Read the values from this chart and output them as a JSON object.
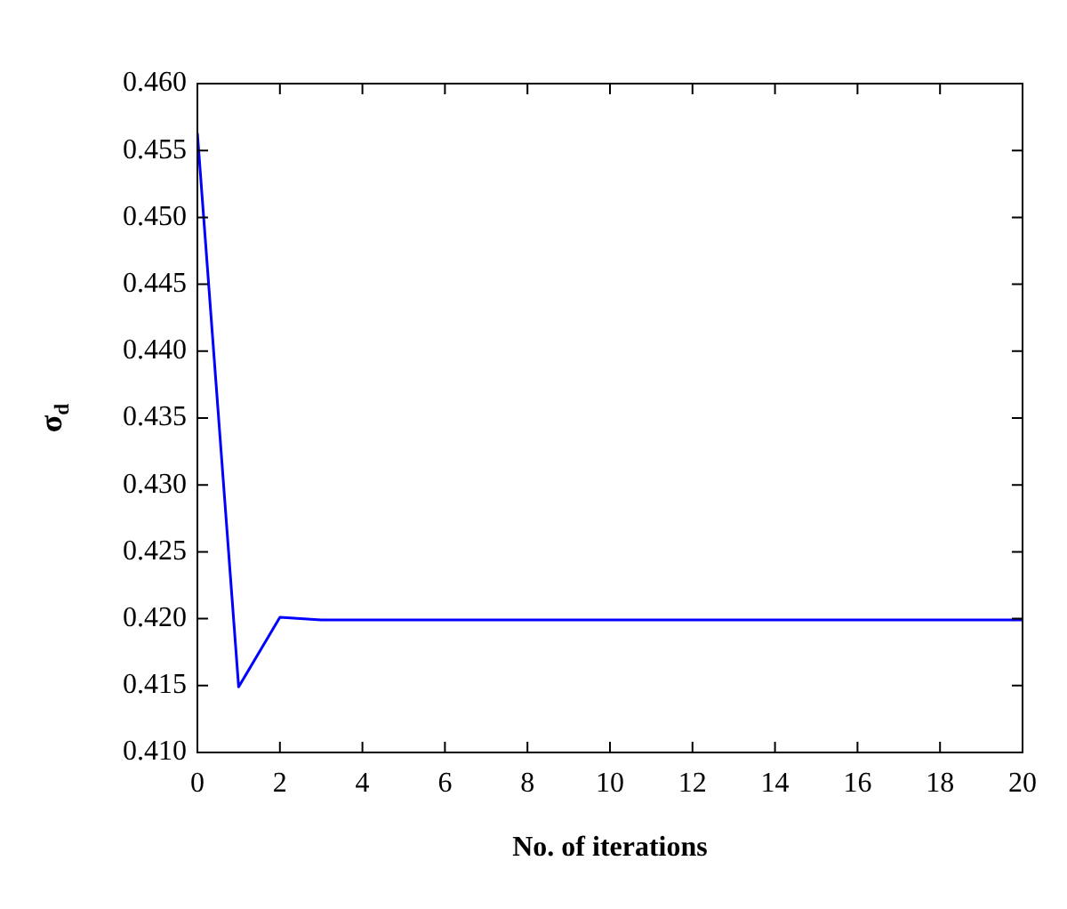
{
  "chart_data": {
    "type": "line",
    "xlabel": "No. of iterations",
    "ylabel": "σ$_{d}$",
    "x": [
      0,
      1,
      2,
      3,
      20
    ],
    "series": [
      {
        "color": "#0000ff",
        "values": [
          0.4563,
          0.4149,
          0.4201,
          0.4199,
          0.4199
        ]
      }
    ],
    "xlim": [
      0,
      20
    ],
    "xticks": [
      0,
      2,
      4,
      6,
      8,
      10,
      12,
      14,
      16,
      18,
      20
    ],
    "ylim": [
      0.41,
      0.46
    ],
    "yticks": [
      {
        "value": 0.41,
        "label": "0.410"
      },
      {
        "value": 0.415,
        "label": "0.415"
      },
      {
        "value": 0.42,
        "label": "0.420"
      },
      {
        "value": 0.425,
        "label": "0.425"
      },
      {
        "value": 0.43,
        "label": "0.430"
      },
      {
        "value": 0.435,
        "label": "0.435"
      },
      {
        "value": 0.44,
        "label": "0.440"
      },
      {
        "value": 0.445,
        "label": "0.445"
      },
      {
        "value": 0.45,
        "label": "0.450"
      },
      {
        "value": 0.455,
        "label": "0.455"
      },
      {
        "value": 0.46,
        "label": "0.460"
      }
    ],
    "grid": false,
    "legend": false,
    "marker": "none",
    "line_style": "solid"
  }
}
